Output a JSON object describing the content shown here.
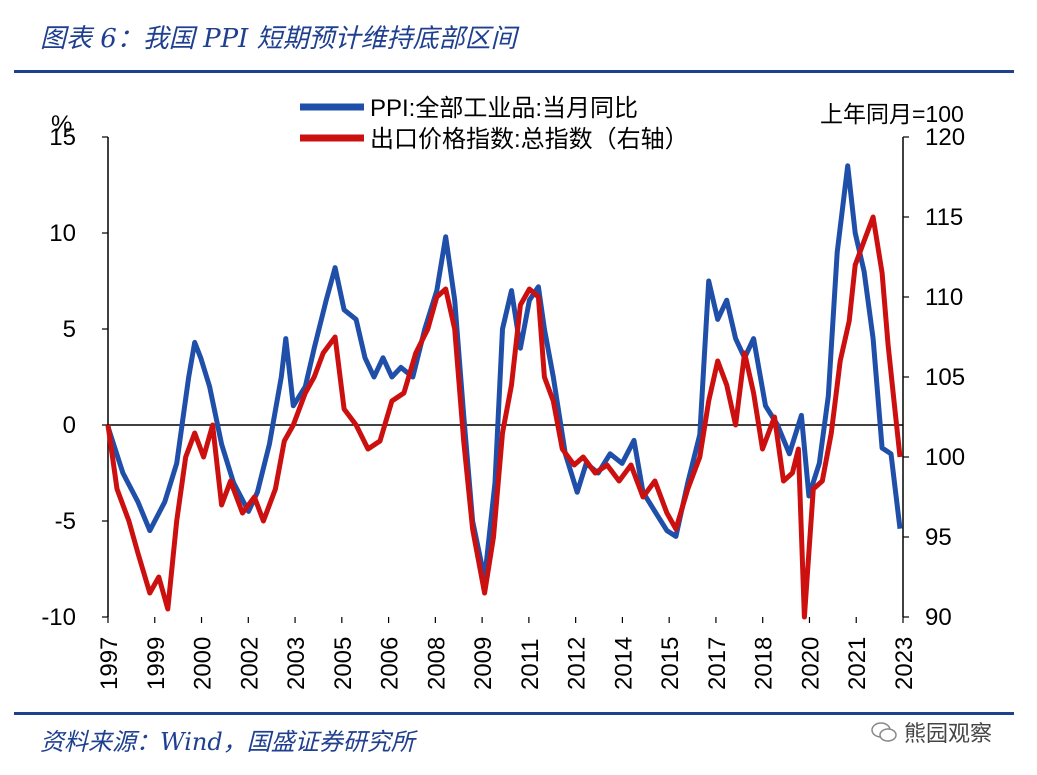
{
  "figure": {
    "title": "图表 6：我国 PPI 短期预计维持底部区间",
    "source": "资料来源：Wind，国盛证券研究所",
    "watermark": "熊园观察",
    "watermark_icon": "wechat-icon"
  },
  "colors": {
    "ppi": "#1f4fa8",
    "export": "#cc1010",
    "rule": "#1f3f8f"
  },
  "chart_data": {
    "type": "line",
    "left_unit": "%",
    "right_unit": "上年同月=100",
    "x_ticks": [
      "1997",
      "1999",
      "2000",
      "2002",
      "2003",
      "2005",
      "2006",
      "2008",
      "2009",
      "2011",
      "2012",
      "2014",
      "2015",
      "2017",
      "2018",
      "2020",
      "2021",
      "2023"
    ],
    "left_axis": {
      "ylim": [
        -10,
        15
      ],
      "ticks": [
        -10,
        -5,
        0,
        5,
        10,
        15
      ]
    },
    "right_axis": {
      "ylim": [
        90,
        120
      ],
      "ticks": [
        90,
        95,
        100,
        105,
        110,
        115,
        120
      ]
    },
    "grid": false,
    "legend_position": "top",
    "series": [
      {
        "name": "PPI:全部工业品:当月同比",
        "axis": "left",
        "points": [
          [
            1997.0,
            -0.1
          ],
          [
            1997.5,
            -2.5
          ],
          [
            1998.0,
            -4.0
          ],
          [
            1998.4,
            -5.5
          ],
          [
            1998.9,
            -4.0
          ],
          [
            1999.3,
            -2.0
          ],
          [
            1999.7,
            2.5
          ],
          [
            1999.9,
            4.3
          ],
          [
            2000.1,
            3.5
          ],
          [
            2000.4,
            2.0
          ],
          [
            2000.8,
            -1.0
          ],
          [
            2001.2,
            -3.0
          ],
          [
            2001.7,
            -4.5
          ],
          [
            2002.0,
            -3.5
          ],
          [
            2002.4,
            -1.0
          ],
          [
            2002.8,
            2.5
          ],
          [
            2002.95,
            4.5
          ],
          [
            2003.2,
            1.0
          ],
          [
            2003.6,
            2.0
          ],
          [
            2003.9,
            4.0
          ],
          [
            2004.3,
            6.5
          ],
          [
            2004.6,
            8.2
          ],
          [
            2004.9,
            6.0
          ],
          [
            2005.3,
            5.5
          ],
          [
            2005.6,
            3.5
          ],
          [
            2005.9,
            2.5
          ],
          [
            2006.2,
            3.5
          ],
          [
            2006.5,
            2.5
          ],
          [
            2006.8,
            3.0
          ],
          [
            2007.2,
            2.5
          ],
          [
            2007.6,
            5.0
          ],
          [
            2008.0,
            7.0
          ],
          [
            2008.3,
            9.8
          ],
          [
            2008.6,
            6.5
          ],
          [
            2008.9,
            0.5
          ],
          [
            2009.2,
            -5.0
          ],
          [
            2009.6,
            -8.0
          ],
          [
            2009.95,
            -3.0
          ],
          [
            2010.2,
            5.0
          ],
          [
            2010.5,
            7.0
          ],
          [
            2010.8,
            4.0
          ],
          [
            2011.1,
            6.5
          ],
          [
            2011.4,
            7.2
          ],
          [
            2011.6,
            5.0
          ],
          [
            2011.9,
            2.5
          ],
          [
            2012.3,
            -1.5
          ],
          [
            2012.7,
            -3.5
          ],
          [
            2013.0,
            -2.0
          ],
          [
            2013.4,
            -2.5
          ],
          [
            2013.8,
            -1.5
          ],
          [
            2014.2,
            -2.0
          ],
          [
            2014.6,
            -0.8
          ],
          [
            2014.9,
            -3.5
          ],
          [
            2015.3,
            -4.5
          ],
          [
            2015.7,
            -5.5
          ],
          [
            2016.0,
            -5.8
          ],
          [
            2016.4,
            -3.0
          ],
          [
            2016.8,
            -0.5
          ],
          [
            2017.1,
            7.5
          ],
          [
            2017.4,
            5.5
          ],
          [
            2017.7,
            6.5
          ],
          [
            2018.0,
            4.5
          ],
          [
            2018.3,
            3.5
          ],
          [
            2018.6,
            4.5
          ],
          [
            2019.0,
            1.0
          ],
          [
            2019.4,
            0.0
          ],
          [
            2019.8,
            -1.5
          ],
          [
            2020.2,
            0.5
          ],
          [
            2020.45,
            -3.7
          ],
          [
            2020.8,
            -2.0
          ],
          [
            2021.1,
            1.5
          ],
          [
            2021.4,
            9.0
          ],
          [
            2021.75,
            13.5
          ],
          [
            2022.0,
            10.0
          ],
          [
            2022.3,
            8.0
          ],
          [
            2022.6,
            4.5
          ],
          [
            2022.9,
            -1.2
          ],
          [
            2023.2,
            -1.5
          ],
          [
            2023.5,
            -5.4
          ]
        ]
      },
      {
        "name": "出口价格指数:总指数（右轴）",
        "axis": "right",
        "points": [
          [
            1997.0,
            102.0
          ],
          [
            1997.3,
            98.0
          ],
          [
            1997.7,
            96.0
          ],
          [
            1998.0,
            94.0
          ],
          [
            1998.4,
            91.5
          ],
          [
            1998.7,
            92.5
          ],
          [
            1999.0,
            90.5
          ],
          [
            1999.3,
            96.0
          ],
          [
            1999.6,
            100.0
          ],
          [
            1999.9,
            101.5
          ],
          [
            2000.2,
            100.0
          ],
          [
            2000.5,
            102.0
          ],
          [
            2000.8,
            97.0
          ],
          [
            2001.1,
            98.5
          ],
          [
            2001.5,
            96.5
          ],
          [
            2001.9,
            97.5
          ],
          [
            2002.2,
            96.0
          ],
          [
            2002.6,
            98.0
          ],
          [
            2002.9,
            101.0
          ],
          [
            2003.2,
            102.0
          ],
          [
            2003.6,
            104.0
          ],
          [
            2003.9,
            105.0
          ],
          [
            2004.2,
            106.5
          ],
          [
            2004.6,
            107.5
          ],
          [
            2004.9,
            103.0
          ],
          [
            2005.3,
            102.0
          ],
          [
            2005.7,
            100.5
          ],
          [
            2006.1,
            101.0
          ],
          [
            2006.5,
            103.5
          ],
          [
            2006.9,
            104.0
          ],
          [
            2007.3,
            106.5
          ],
          [
            2007.7,
            108.0
          ],
          [
            2008.0,
            110.0
          ],
          [
            2008.3,
            110.5
          ],
          [
            2008.6,
            108.0
          ],
          [
            2008.9,
            101.0
          ],
          [
            2009.2,
            95.5
          ],
          [
            2009.6,
            91.5
          ],
          [
            2009.9,
            95.0
          ],
          [
            2010.2,
            101.5
          ],
          [
            2010.5,
            104.5
          ],
          [
            2010.8,
            109.5
          ],
          [
            2011.1,
            110.5
          ],
          [
            2011.4,
            110.0
          ],
          [
            2011.6,
            105.0
          ],
          [
            2011.9,
            103.5
          ],
          [
            2012.2,
            100.5
          ],
          [
            2012.6,
            99.5
          ],
          [
            2012.9,
            100.0
          ],
          [
            2013.3,
            99.0
          ],
          [
            2013.7,
            99.5
          ],
          [
            2014.1,
            98.5
          ],
          [
            2014.5,
            99.5
          ],
          [
            2014.9,
            97.5
          ],
          [
            2015.3,
            98.5
          ],
          [
            2015.7,
            96.5
          ],
          [
            2016.0,
            95.5
          ],
          [
            2016.4,
            98.0
          ],
          [
            2016.8,
            100.0
          ],
          [
            2017.1,
            103.5
          ],
          [
            2017.4,
            106.0
          ],
          [
            2017.7,
            104.5
          ],
          [
            2018.0,
            102.0
          ],
          [
            2018.3,
            106.5
          ],
          [
            2018.6,
            104.0
          ],
          [
            2018.9,
            100.5
          ],
          [
            2019.3,
            102.5
          ],
          [
            2019.6,
            98.5
          ],
          [
            2019.9,
            99.0
          ],
          [
            2020.1,
            100.5
          ],
          [
            2020.3,
            90.0
          ],
          [
            2020.6,
            98.0
          ],
          [
            2020.9,
            98.5
          ],
          [
            2021.2,
            101.5
          ],
          [
            2021.5,
            106.0
          ],
          [
            2021.8,
            108.5
          ],
          [
            2022.0,
            112.0
          ],
          [
            2022.3,
            113.5
          ],
          [
            2022.6,
            115.0
          ],
          [
            2022.9,
            111.5
          ],
          [
            2023.1,
            107.0
          ],
          [
            2023.3,
            103.5
          ],
          [
            2023.5,
            100.0
          ]
        ]
      }
    ]
  }
}
